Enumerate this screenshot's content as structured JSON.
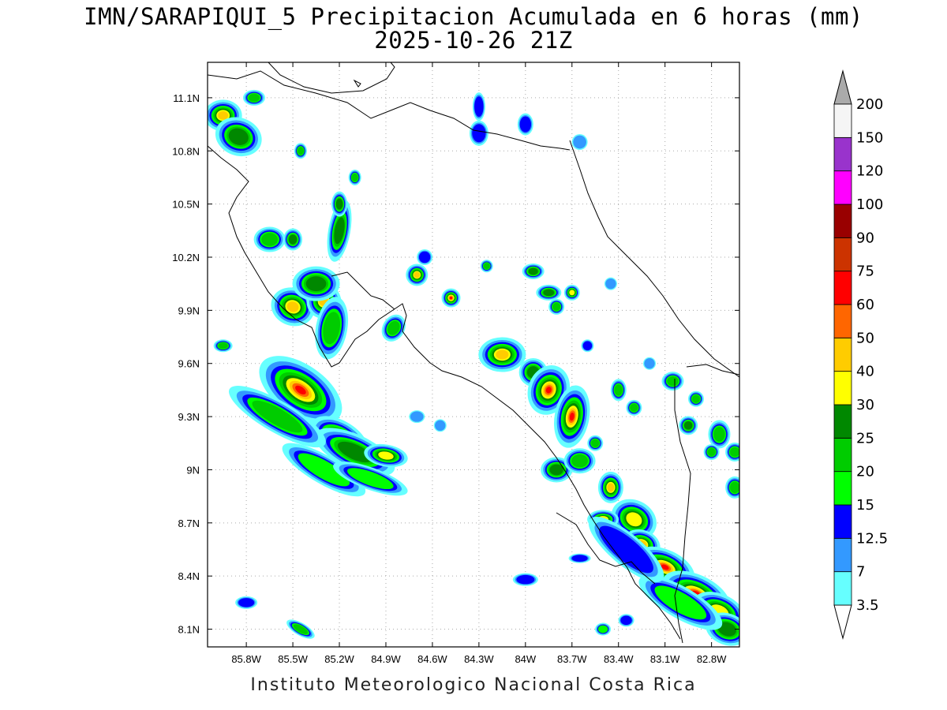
{
  "title_line1": "IMN/SARAPIQUI_5 Precipitacion Acumulada en 6 horas (mm)",
  "title_line2": "2025-10-26 21Z",
  "footer": "Instituto Meteorologico Nacional Costa Rica",
  "map": {
    "lon_range": [
      -86.05,
      -82.62
    ],
    "lat_range": [
      8.0,
      11.3
    ],
    "lon_ticks": [
      "85.8W",
      "85.5W",
      "85.2W",
      "84.9W",
      "84.6W",
      "84.3W",
      "84W",
      "83.7W",
      "83.4W",
      "83.1W",
      "82.8W"
    ],
    "lon_tick_values": [
      -85.8,
      -85.5,
      -85.2,
      -84.9,
      -84.6,
      -84.3,
      -84.0,
      -83.7,
      -83.4,
      -83.1,
      -82.8
    ],
    "lat_ticks": [
      "11.1N",
      "10.8N",
      "10.5N",
      "10.2N",
      "9.9N",
      "9.6N",
      "9.3N",
      "9N",
      "8.7N",
      "8.4N",
      "8.1N"
    ],
    "lat_tick_values": [
      11.1,
      10.8,
      10.5,
      10.2,
      9.9,
      9.6,
      9.3,
      9.0,
      8.7,
      8.4,
      8.1
    ],
    "grid": true
  },
  "colorbar": {
    "labels": [
      "3.5",
      "7",
      "12.5",
      "15",
      "20",
      "25",
      "30",
      "40",
      "50",
      "60",
      "75",
      "90",
      "100",
      "120",
      "150",
      "200"
    ],
    "colors": [
      "#66ffff",
      "#3399ff",
      "#0000ff",
      "#00ff00",
      "#00cc00",
      "#008800",
      "#ffff00",
      "#ffcc00",
      "#ff6600",
      "#ff0000",
      "#cc3300",
      "#990000",
      "#ff00ff",
      "#9933cc",
      "#f5f5f5",
      "#aaaaaa"
    ],
    "upper_arrow_color": "#aaaaaa",
    "lower_arrow_color": "#ffffff"
  },
  "precip_levels": [
    "#66ffff",
    "#3399ff",
    "#0000ff",
    "#00ff00",
    "#00cc00",
    "#008800",
    "#ffff00",
    "#ffcc00",
    "#ff6600",
    "#ff0000"
  ]
}
